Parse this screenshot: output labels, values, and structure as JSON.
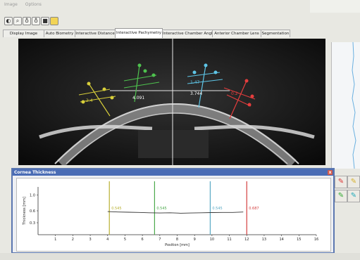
{
  "menu": {
    "items": [
      "Image",
      "Options"
    ]
  },
  "toolbar": {
    "icons": [
      "contrast-icon",
      "zoom-icon",
      "pan-icon",
      "select-icon",
      "save-icon",
      "palette-icon"
    ]
  },
  "tabs": [
    {
      "label": "Display Image"
    },
    {
      "label": "Auto Biometry"
    },
    {
      "label": "Interactive Distance"
    },
    {
      "label": "Interactive Pachymetry"
    },
    {
      "label": "Interactive Chamber Angle"
    },
    {
      "label": "Anterior Chamber Lens"
    },
    {
      "label": "Segmentation"
    }
  ],
  "active_tab": "Interactive Pachymetry",
  "scan": {
    "measurements": [
      {
        "label": "2.4",
        "color": "#d8cf3a"
      },
      {
        "label": "4.091",
        "color": "#4ec24e"
      },
      {
        "label": "1.47",
        "color": "#5ec5e6"
      },
      {
        "label": "3.744",
        "color": "#ffffff"
      },
      {
        "label": "0.2",
        "color": "#e53d3d"
      }
    ]
  },
  "dialog": {
    "title": "Cornea Thickness",
    "close_label": "x"
  },
  "chart_data": {
    "type": "line",
    "title": "",
    "xlabel": "Position [mm]",
    "ylabel": "Thickness [mm]",
    "xlim": [
      0,
      16
    ],
    "ylim": [
      0,
      1.2
    ],
    "x_ticks": [
      1,
      2,
      3,
      4,
      5,
      6,
      7,
      8,
      9,
      10,
      11,
      12,
      13,
      14,
      15,
      16
    ],
    "y_ticks": [
      0.3,
      0.6,
      1.0
    ],
    "grid": false,
    "series": [
      {
        "x": [
          4.0,
          4.6,
          5.2,
          5.8,
          6.4,
          7.0,
          7.6,
          8.2,
          8.8,
          9.4,
          10.0,
          10.6,
          11.2,
          11.8
        ],
        "y": [
          0.58,
          0.57,
          0.565,
          0.56,
          0.55,
          0.545,
          0.55,
          0.54,
          0.545,
          0.55,
          0.555,
          0.56,
          0.56,
          0.57
        ],
        "color": "#333333"
      }
    ],
    "markers": [
      {
        "x": 4.1,
        "label": "0.545",
        "color": "#b8b030"
      },
      {
        "x": 6.7,
        "label": "0.545",
        "color": "#4caa4c"
      },
      {
        "x": 9.9,
        "label": "0.545",
        "color": "#59a9c4"
      },
      {
        "x": 12.0,
        "label": "0.687",
        "color": "#d44040"
      }
    ]
  },
  "side_tools": [
    {
      "icon": "red-pen-icon",
      "color": "#d33"
    },
    {
      "icon": "yellow-pen-icon",
      "color": "#d6b02a"
    },
    {
      "icon": "green-pen-icon",
      "color": "#3a3"
    },
    {
      "icon": "teal-pen-icon",
      "color": "#2ab"
    }
  ]
}
